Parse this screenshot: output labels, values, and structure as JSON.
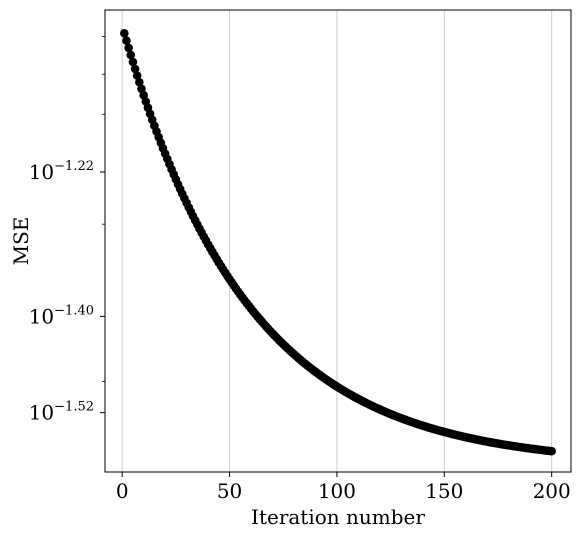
{
  "chart_data": {
    "type": "scatter",
    "xlabel": "Iteration number",
    "ylabel": "MSE",
    "xlim": [
      -8,
      209
    ],
    "ylim_log10": [
      -1.594,
      -1.018
    ],
    "yscale": "log",
    "grid": "vertical",
    "x_ticks": [
      {
        "value": 0,
        "label": "0"
      },
      {
        "value": 50,
        "label": "50"
      },
      {
        "value": 100,
        "label": "100"
      },
      {
        "value": 150,
        "label": "150"
      },
      {
        "value": 200,
        "label": "200"
      }
    ],
    "y_ticks": [
      {
        "log10": -1.22,
        "base": "10",
        "exp": "−1.22"
      },
      {
        "log10": -1.4,
        "base": "10",
        "exp": "−1.40"
      },
      {
        "log10": -1.52,
        "base": "10",
        "exp": "−1.52"
      }
    ],
    "y_minor_ticks_log10": [
      -1.051,
      -1.098,
      -1.148,
      -1.285,
      -1.481
    ],
    "marker_color": "#000000",
    "series": [
      {
        "x_start": 1,
        "x_end": 200,
        "x_step": 1,
        "log10_mse_first": -1.047,
        "log10_mse_last": -1.568,
        "decay_rate": 0.0172,
        "note_points": [
          {
            "x": 1,
            "log10_mse": -1.047
          },
          {
            "x": 25,
            "log10_mse": -1.215
          },
          {
            "x": 50,
            "log10_mse": -1.323
          },
          {
            "x": 75,
            "log10_mse": -1.388
          },
          {
            "x": 100,
            "log10_mse": -1.437
          },
          {
            "x": 150,
            "log10_mse": -1.512
          },
          {
            "x": 200,
            "log10_mse": -1.568
          }
        ]
      }
    ]
  }
}
